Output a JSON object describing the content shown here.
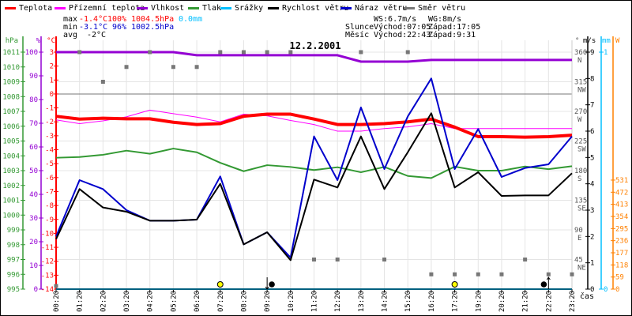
{
  "legend": [
    {
      "label": "Teplota",
      "color": "#ff0000"
    },
    {
      "label": "Přízemní teplota",
      "color": "#ff00ff"
    },
    {
      "label": "Vlhkost",
      "color": "#9400d3"
    },
    {
      "label": "Tlak",
      "color": "#339933"
    },
    {
      "label": "Srážky",
      "color": "#00bfff"
    },
    {
      "label": "Rychlost větru",
      "color": "#000000"
    },
    {
      "label": "Náraz větru",
      "color": "#0000cc"
    },
    {
      "label": "Směr větru",
      "color": "#777777"
    }
  ],
  "stats": {
    "max_label": "max",
    "max_temp": "-1.4°C",
    "max_hum": "100%",
    "max_press": "1004.5hPa",
    "max_precip": "0.0mm",
    "min_label": "min",
    "min_temp": "-3.1°C",
    "min_hum": "96%",
    "min_press": "1002.5hPa",
    "avg_label": "avg",
    "avg_temp": "-2°C",
    "ws": "WS:6.7m/s",
    "wg": "WG:8m/s",
    "sun_label": "Slunce",
    "sun_rise": "Východ:07:05",
    "sun_set": "Západ:17:05",
    "moon_label": "Měsíc",
    "moon_rise": "Východ:22:43",
    "moon_set": "Západ:9:31"
  },
  "chart_data": {
    "type": "line",
    "title": "12.2.2001",
    "xlabel": "čas",
    "x": [
      "00:20",
      "01:20",
      "02:20",
      "03:20",
      "04:20",
      "05:20",
      "06:20",
      "07:20",
      "08:20",
      "09:20",
      "10:20",
      "11:20",
      "12:20",
      "13:20",
      "14:20",
      "15:20",
      "16:20",
      "17:20",
      "19:20",
      "20:20",
      "21:20",
      "22:20",
      "23:20"
    ],
    "axes": {
      "pressure": {
        "label": "hPa",
        "range": [
          995,
          1011
        ],
        "ticks": [
          995,
          996,
          997,
          998,
          999,
          1000,
          1001,
          1002,
          1003,
          1004,
          1005,
          1006,
          1007,
          1008,
          1009,
          1010,
          1011
        ],
        "color": "#339933"
      },
      "humidity": {
        "label": "%",
        "range": [
          0,
          100
        ],
        "ticks": [
          0,
          10,
          20,
          30,
          40,
          50,
          60,
          70,
          80,
          90,
          100
        ],
        "color": "#9400d3"
      },
      "temperature": {
        "label": "°C",
        "range": [
          -14,
          3
        ],
        "ticks": [
          3,
          2,
          1,
          0,
          -1,
          -2,
          -3,
          -4,
          -5,
          -6,
          -7,
          -8,
          -9,
          -10,
          -11,
          -12,
          -13,
          -14
        ],
        "color": "#ff0000"
      },
      "direction": {
        "label": "°",
        "range": [
          0,
          360
        ],
        "ticks": [
          360,
          315,
          270,
          225,
          180,
          135,
          90,
          45
        ],
        "compass": [
          "N",
          "NW",
          "W",
          "SW",
          "S",
          "SE",
          "E",
          "NE"
        ],
        "color": "#777777"
      },
      "wind": {
        "label": "m/s",
        "range": [
          0,
          9
        ],
        "ticks": [
          0,
          1,
          2,
          3,
          4,
          5,
          6,
          7,
          8,
          9
        ],
        "color": "#000000"
      },
      "precip": {
        "label": "mm",
        "range": [
          0,
          1
        ],
        "ticks": [
          0,
          1
        ],
        "color": "#00bfff"
      },
      "radiation": {
        "label": "W",
        "range": [
          0,
          1154
        ],
        "ticks": [
          0,
          59,
          118,
          177,
          236,
          295,
          354,
          413,
          472,
          531
        ],
        "color": "#ff8000"
      }
    },
    "series": [
      {
        "name": "Tlak",
        "axis": "pressure",
        "color": "#339933",
        "width": 2,
        "values": [
          1003.87,
          1003.92,
          1004.07,
          1004.35,
          1004.14,
          1004.49,
          1004.24,
          1003.53,
          1002.96,
          1003.37,
          1003.25,
          1003.04,
          1003.23,
          1002.89,
          1003.25,
          1002.64,
          1002.5,
          1003.27,
          1003.0,
          1003.0,
          1003.28,
          1003.1,
          1003.3
        ]
      },
      {
        "name": "Vlhkost",
        "axis": "humidity",
        "color": "#9400d3",
        "width": 3,
        "values": [
          100,
          100,
          100,
          100,
          100,
          100,
          98.7,
          98.7,
          98.7,
          98.7,
          98.7,
          98.7,
          98.7,
          96,
          96,
          96,
          96.7,
          96.7,
          96.7,
          96.7,
          96.7,
          96.7,
          96.7
        ]
      },
      {
        "name": "Přízemní teplota",
        "axis": "temperature",
        "color": "#ff00ff",
        "width": 1,
        "values": [
          -1.86,
          -2.13,
          -1.93,
          -1.64,
          -1.16,
          -1.41,
          -1.66,
          -2.0,
          -1.45,
          -1.57,
          -1.9,
          -2.19,
          -2.67,
          -2.67,
          -2.48,
          -2.36,
          -2.13,
          -2.48,
          -2.48,
          -2.48,
          -2.48,
          -2.48,
          -2.48
        ]
      },
      {
        "name": "Teplota",
        "axis": "temperature",
        "color": "#ff0000",
        "width": 4,
        "values": [
          -1.6,
          -1.8,
          -1.74,
          -1.78,
          -1.78,
          -2.03,
          -2.19,
          -2.13,
          -1.6,
          -1.45,
          -1.45,
          -1.8,
          -2.19,
          -2.19,
          -2.13,
          -2.0,
          -1.8,
          -2.38,
          -3.06,
          -3.06,
          -3.1,
          -3.06,
          -2.96
        ]
      },
      {
        "name": "Srážky",
        "axis": "precip",
        "color": "#00bfff",
        "width": 2,
        "values": [
          0,
          0,
          0,
          0,
          0,
          0,
          0,
          0,
          0,
          0,
          0,
          0,
          0,
          0,
          0,
          0,
          0,
          0,
          0,
          0,
          0,
          0,
          0
        ]
      },
      {
        "name": "Náraz větru",
        "axis": "wind",
        "color": "#0000cc",
        "width": 2,
        "values": [
          2.0,
          4.14,
          3.8,
          3.0,
          2.6,
          2.6,
          2.64,
          4.28,
          1.7,
          2.16,
          1.2,
          5.8,
          4.14,
          6.9,
          4.56,
          6.56,
          8.0,
          4.56,
          6.08,
          4.26,
          4.6,
          4.74,
          5.8
        ]
      },
      {
        "name": "Rychlost větru",
        "axis": "wind",
        "color": "#000000",
        "width": 2,
        "values": [
          1.9,
          3.8,
          3.1,
          2.94,
          2.6,
          2.6,
          2.64,
          4.0,
          1.7,
          2.16,
          1.1,
          4.16,
          3.86,
          5.8,
          3.8,
          5.2,
          6.68,
          3.86,
          4.44,
          3.54,
          3.56,
          3.56,
          4.4
        ]
      },
      {
        "name": "Směr větru",
        "axis": "direction",
        "color": "#777777",
        "marker": "square",
        "values": [
          0,
          360,
          315,
          337.5,
          360,
          337.5,
          337.5,
          360,
          360,
          360,
          360,
          45,
          45,
          360,
          45,
          360,
          22.5,
          22.5,
          22.5,
          22.5,
          45,
          22.5,
          22.5
        ]
      }
    ],
    "markers": [
      {
        "type": "sun",
        "at": 7
      },
      {
        "type": "sun",
        "at": 17
      },
      {
        "type": "moon-set",
        "at": 9.2
      },
      {
        "type": "moon-rise",
        "at": 20.8
      }
    ],
    "grid": true
  }
}
